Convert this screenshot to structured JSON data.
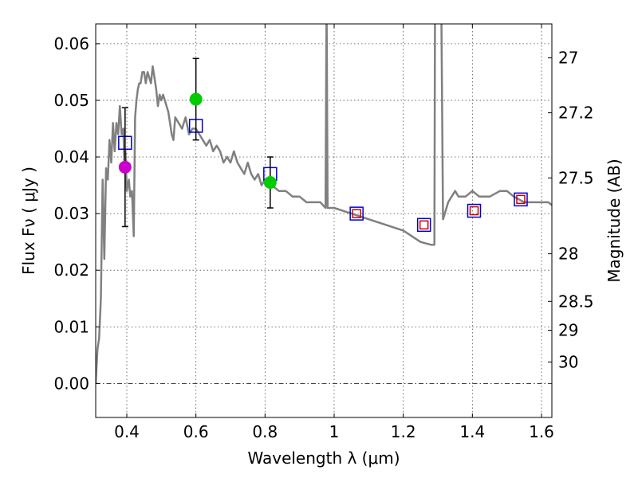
{
  "chart_data": {
    "type": "line",
    "title": "",
    "xlabel": "Wavelength  λ (μm)",
    "ylabel": "Flux  Fν  ( μJy )",
    "y2label": "Magnitude (AB)",
    "xlim": [
      0.31,
      1.63
    ],
    "ylim": [
      -0.006,
      0.0635
    ],
    "grid": true,
    "xticks": [
      0.4,
      0.6,
      0.8,
      1.0,
      1.2,
      1.4,
      1.6
    ],
    "xtick_labels": [
      "0.4",
      "0.6",
      "0.8",
      "1",
      "1.2",
      "1.4",
      "1.6"
    ],
    "yticks": [
      0.0,
      0.01,
      0.02,
      0.03,
      0.04,
      0.05,
      0.06
    ],
    "ytick_labels": [
      "0.00",
      "0.01",
      "0.02",
      "0.03",
      "0.04",
      "0.05",
      "0.06"
    ],
    "right_ticks": [
      {
        "flux": 0.0575,
        "label": "27"
      },
      {
        "flux": 0.0478,
        "label": "27.2"
      },
      {
        "flux": 0.0363,
        "label": "27.5"
      },
      {
        "flux": 0.0229,
        "label": "28"
      },
      {
        "flux": 0.0145,
        "label": "28.5"
      },
      {
        "flux": 0.0094,
        "label": "29"
      },
      {
        "flux": 0.0038,
        "label": "30"
      }
    ],
    "series": [
      {
        "name": "model spectrum",
        "kind": "line",
        "color": "#808080",
        "x": [
          0.31,
          0.315,
          0.32,
          0.325,
          0.33,
          0.335,
          0.34,
          0.345,
          0.35,
          0.355,
          0.36,
          0.365,
          0.37,
          0.375,
          0.38,
          0.385,
          0.39,
          0.393,
          0.396,
          0.4,
          0.403,
          0.406,
          0.41,
          0.415,
          0.42,
          0.424,
          0.428,
          0.432,
          0.436,
          0.44,
          0.445,
          0.45,
          0.455,
          0.46,
          0.465,
          0.47,
          0.475,
          0.48,
          0.485,
          0.49,
          0.495,
          0.5,
          0.505,
          0.51,
          0.515,
          0.52,
          0.525,
          0.53,
          0.535,
          0.54,
          0.55,
          0.56,
          0.57,
          0.58,
          0.59,
          0.6,
          0.61,
          0.62,
          0.63,
          0.64,
          0.65,
          0.66,
          0.67,
          0.68,
          0.69,
          0.7,
          0.71,
          0.72,
          0.73,
          0.74,
          0.75,
          0.76,
          0.77,
          0.78,
          0.79,
          0.8,
          0.82,
          0.84,
          0.86,
          0.88,
          0.9,
          0.92,
          0.94,
          0.96,
          0.975,
          0.978,
          0.981,
          0.985,
          1.0,
          1.05,
          1.1,
          1.15,
          1.2,
          1.25,
          1.28,
          1.29,
          1.292,
          1.295,
          1.31,
          1.315,
          1.32,
          1.33,
          1.34,
          1.35,
          1.36,
          1.38,
          1.4,
          1.42,
          1.45,
          1.48,
          1.5,
          1.52,
          1.55,
          1.58,
          1.6,
          1.62,
          1.63
        ],
        "y": [
          0.0,
          0.006,
          0.008,
          0.015,
          0.036,
          0.022,
          0.038,
          0.036,
          0.043,
          0.039,
          0.046,
          0.041,
          0.046,
          0.044,
          0.049,
          0.044,
          0.045,
          0.038,
          0.041,
          0.034,
          0.035,
          0.036,
          0.033,
          0.034,
          0.026,
          0.047,
          0.05,
          0.052,
          0.053,
          0.053,
          0.055,
          0.055,
          0.053,
          0.055,
          0.054,
          0.053,
          0.056,
          0.054,
          0.052,
          0.049,
          0.051,
          0.05,
          0.051,
          0.05,
          0.049,
          0.048,
          0.046,
          0.044,
          0.043,
          0.047,
          0.046,
          0.045,
          0.047,
          0.044,
          0.045,
          0.045,
          0.044,
          0.043,
          0.042,
          0.043,
          0.041,
          0.042,
          0.041,
          0.039,
          0.04,
          0.039,
          0.041,
          0.039,
          0.038,
          0.037,
          0.039,
          0.037,
          0.036,
          0.037,
          0.035,
          0.036,
          0.035,
          0.034,
          0.034,
          0.033,
          0.033,
          0.032,
          0.032,
          0.032,
          0.031,
          0.068,
          0.031,
          0.031,
          0.031,
          0.03,
          0.029,
          0.028,
          0.027,
          0.025,
          0.0245,
          0.0245,
          0.068,
          0.068,
          0.068,
          0.029,
          0.03,
          0.032,
          0.033,
          0.034,
          0.033,
          0.033,
          0.034,
          0.033,
          0.033,
          0.034,
          0.034,
          0.033,
          0.032,
          0.032,
          0.032,
          0.032,
          0.0315
        ]
      },
      {
        "name": "model fluxes",
        "kind": "open-square",
        "color": "#0000cc",
        "x": [
          0.395,
          0.6,
          0.815,
          1.065,
          1.26,
          1.405,
          1.54
        ],
        "y": [
          0.0425,
          0.0455,
          0.037,
          0.03,
          0.028,
          0.0305,
          0.0325
        ]
      },
      {
        "name": "observed upper limits",
        "kind": "open-square",
        "color": "#cc0000",
        "x": [
          1.065,
          1.26,
          1.405,
          1.54
        ],
        "y": [
          0.03,
          0.028,
          0.0305,
          0.0325
        ]
      },
      {
        "name": "observed photometry",
        "kind": "point",
        "color": "#00cc00",
        "x": [
          0.6,
          0.815
        ],
        "y": [
          0.0502,
          0.0355
        ],
        "yerr_low": [
          0.0072,
          0.0045
        ],
        "yerr_high": [
          0.0072,
          0.0045
        ]
      },
      {
        "name": "observed photometry (blue band)",
        "kind": "point",
        "color": "#cc00cc",
        "x": [
          0.395
        ],
        "y": [
          0.0382
        ],
        "yerr_low": [
          0.0105
        ],
        "yerr_high": [
          0.0105
        ]
      }
    ]
  }
}
